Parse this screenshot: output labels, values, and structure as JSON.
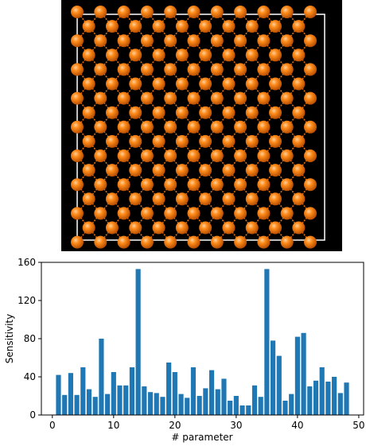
{
  "chart_data": {
    "type": "bar",
    "x": [
      1,
      2,
      3,
      4,
      5,
      6,
      7,
      8,
      9,
      10,
      11,
      12,
      13,
      14,
      15,
      16,
      17,
      18,
      19,
      20,
      21,
      22,
      23,
      24,
      25,
      26,
      27,
      28,
      29,
      30,
      31,
      32,
      33,
      34,
      35,
      36,
      37,
      38,
      39,
      40,
      41,
      42,
      43,
      44,
      45,
      46,
      47,
      48
    ],
    "values": [
      42,
      21,
      44,
      21,
      50,
      27,
      19,
      80,
      22,
      45,
      31,
      31,
      50,
      153,
      30,
      24,
      23,
      19,
      55,
      45,
      22,
      18,
      50,
      20,
      28,
      47,
      27,
      38,
      15,
      20,
      10,
      10,
      31,
      19,
      153,
      78,
      62,
      15,
      22,
      82,
      86,
      30,
      36,
      50,
      35,
      40,
      23,
      34
    ],
    "color": "#1f77b4",
    "xlabel": "# parameter",
    "ylabel": "Sensitivity",
    "xlim": [
      -1.79,
      50.79
    ],
    "ylim": [
      0,
      160
    ],
    "xticks": [
      0,
      10,
      20,
      30,
      40,
      50
    ],
    "yticks": [
      0,
      40,
      80,
      120,
      160
    ]
  }
}
